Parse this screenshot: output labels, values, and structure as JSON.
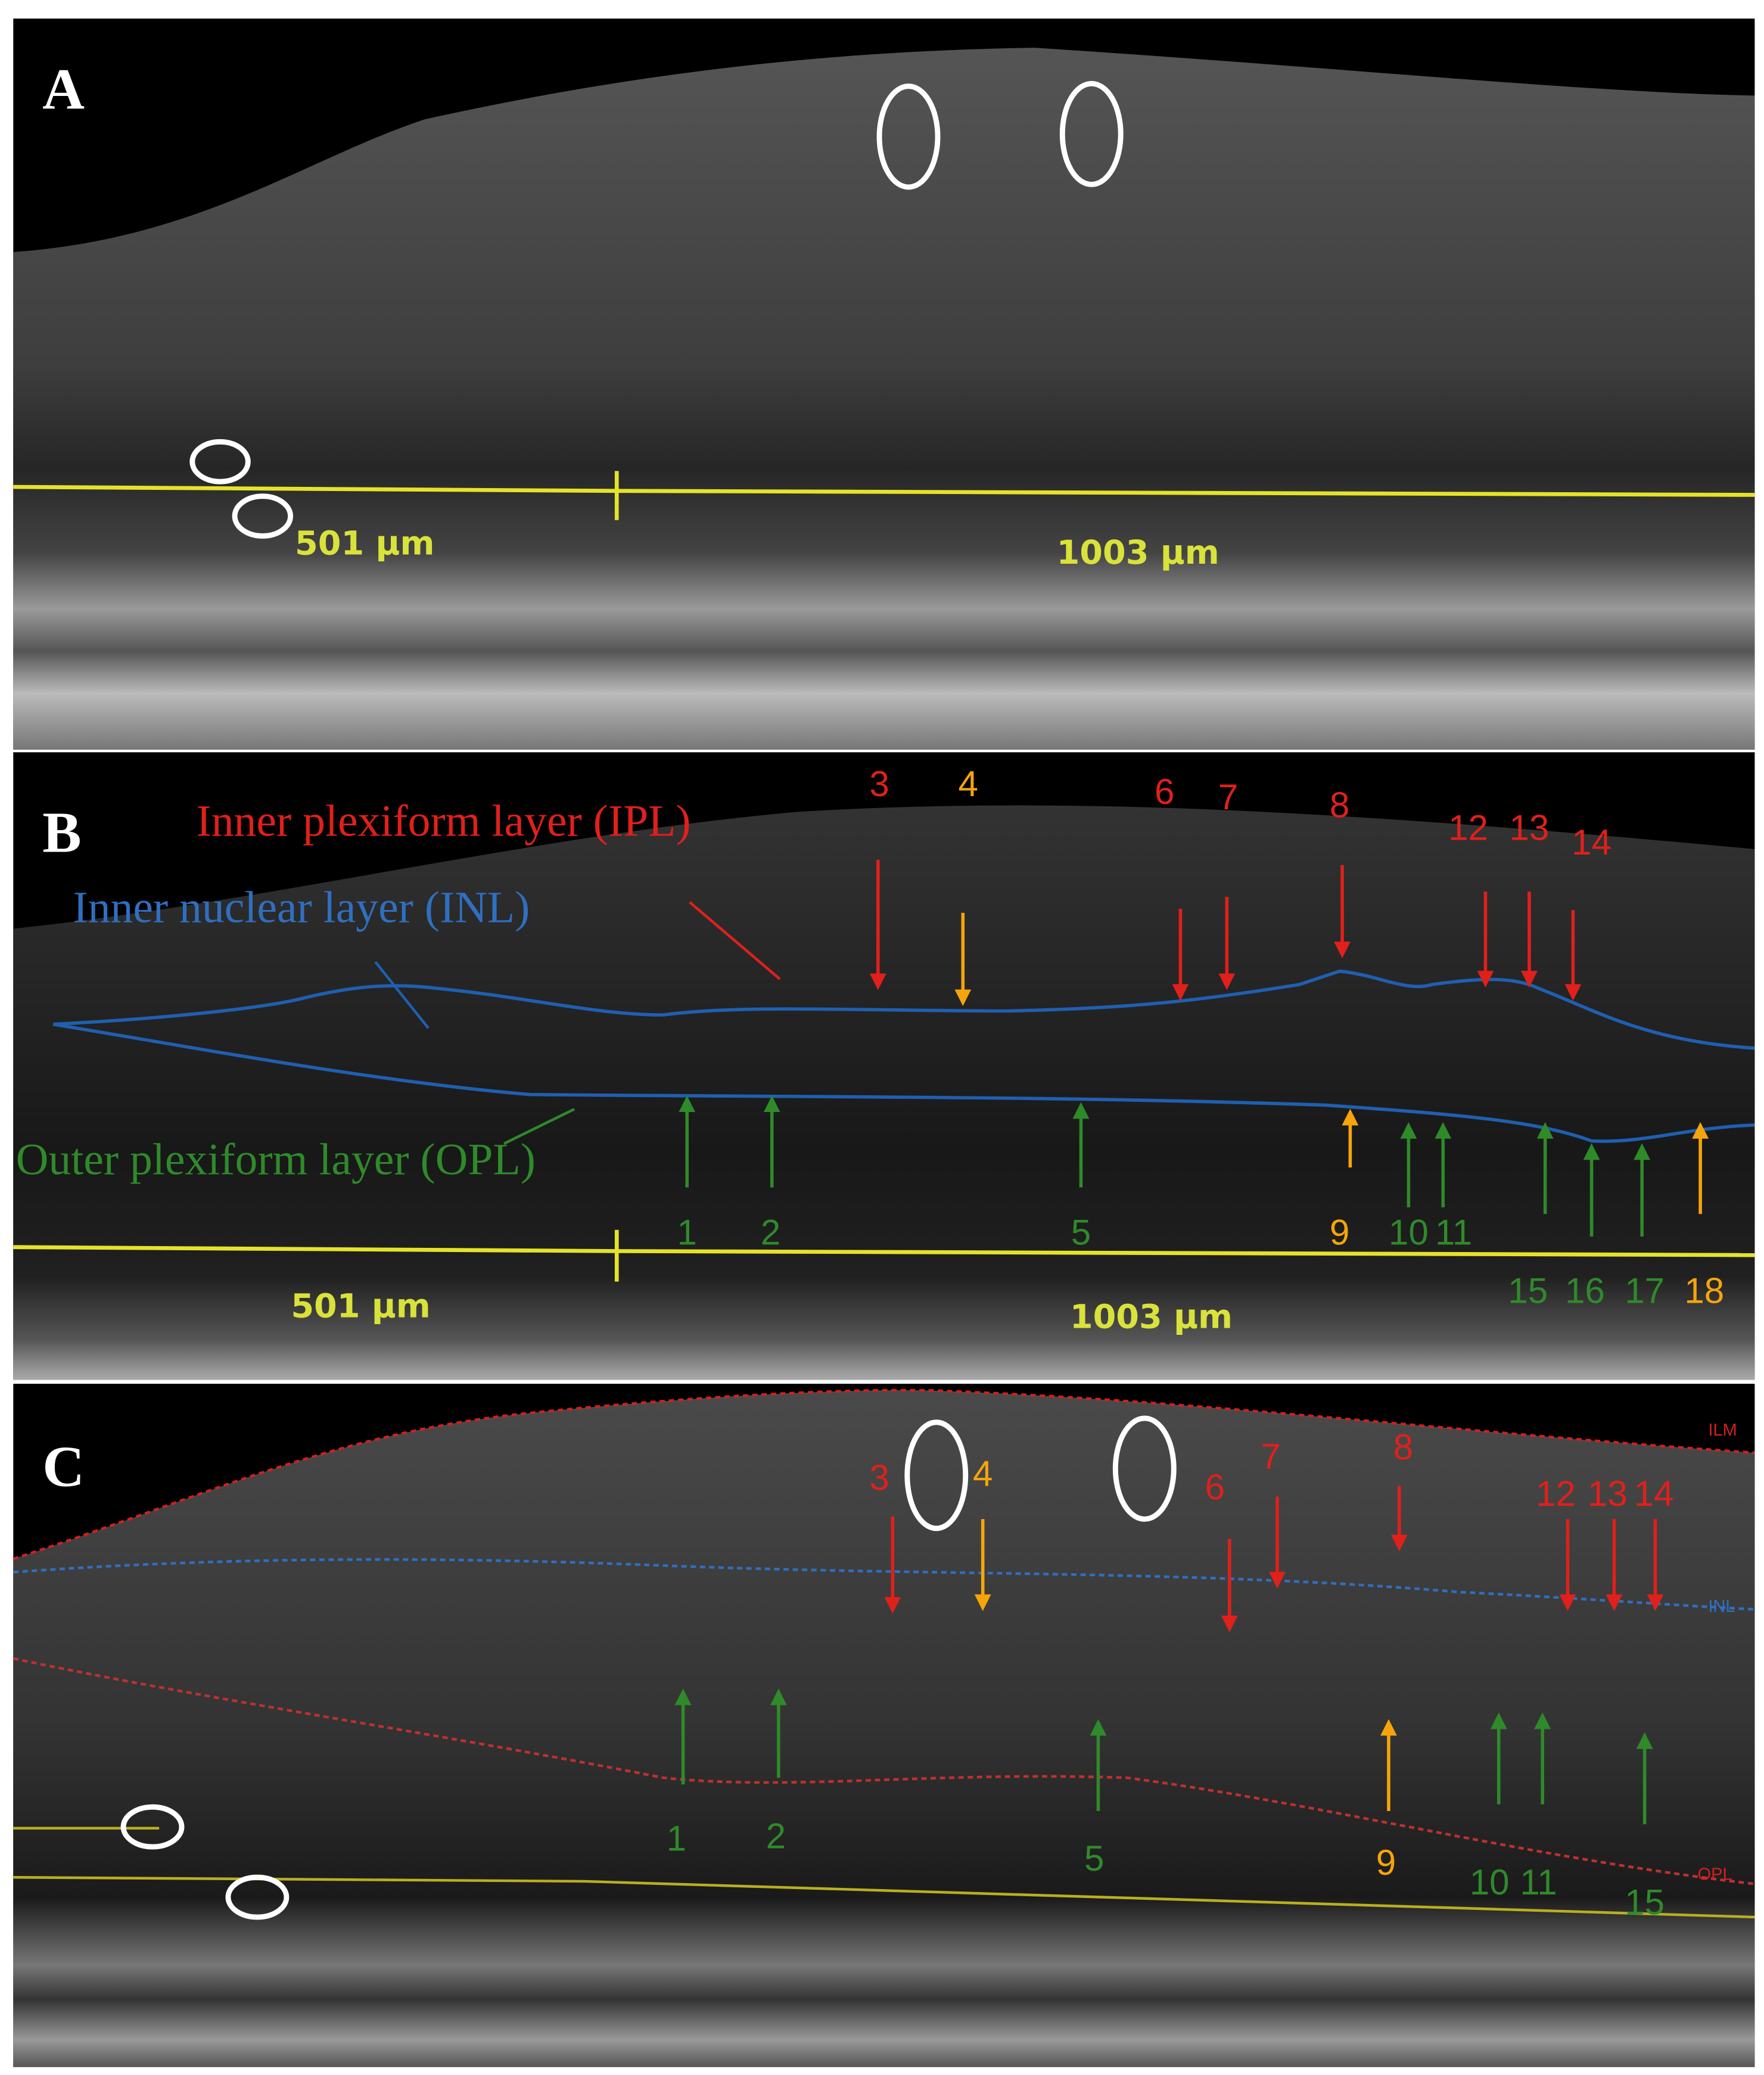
{
  "panels": [
    {
      "label": "A",
      "scale_labels": [
        "501 μm",
        "1003 μm"
      ]
    },
    {
      "label": "B",
      "layer_labels": [
        "Inner plexiform layer (IPL)",
        "Inner nuclear layer (INL)",
        "Outer plexiform layer (OPL)"
      ],
      "markers": [
        "3",
        "4",
        "6",
        "7",
        "8",
        "12",
        "13",
        "14",
        "1",
        "2",
        "5",
        "9",
        "10",
        "11",
        "15",
        "16",
        "17",
        "18"
      ],
      "scale_labels": [
        "501 μm",
        "1003 μm"
      ]
    },
    {
      "label": "C",
      "layer_labels": [
        "ILM",
        "INL",
        "OPL"
      ],
      "markers": [
        "3",
        "4",
        "6",
        "7",
        "8",
        "12",
        "13",
        "14",
        "1",
        "2",
        "5",
        "9",
        "10",
        "11",
        "15"
      ]
    }
  ]
}
